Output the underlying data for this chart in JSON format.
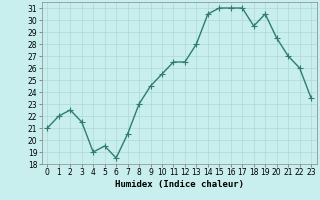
{
  "xlabel": "Humidex (Indice chaleur)",
  "x": [
    0,
    1,
    2,
    3,
    4,
    5,
    6,
    7,
    8,
    9,
    10,
    11,
    12,
    13,
    14,
    15,
    16,
    17,
    18,
    19,
    20,
    21,
    22,
    23
  ],
  "y": [
    21,
    22,
    22.5,
    21.5,
    19,
    19.5,
    18.5,
    20.5,
    23,
    24.5,
    25.5,
    26.5,
    26.5,
    28,
    30.5,
    31,
    31,
    31,
    29.5,
    30.5,
    28.5,
    27,
    26,
    23.5
  ],
  "line_color": "#2e7d6e",
  "marker": "+",
  "bg_color": "#c8eeee",
  "grid_color": "#b0d8d8",
  "ylim": [
    18,
    31.5
  ],
  "yticks": [
    18,
    19,
    20,
    21,
    22,
    23,
    24,
    25,
    26,
    27,
    28,
    29,
    30,
    31
  ],
  "xlim": [
    -0.5,
    23.5
  ],
  "xticks": [
    0,
    1,
    2,
    3,
    4,
    5,
    6,
    7,
    8,
    9,
    10,
    11,
    12,
    13,
    14,
    15,
    16,
    17,
    18,
    19,
    20,
    21,
    22,
    23
  ],
  "tick_fontsize": 5.5,
  "xlabel_fontsize": 6.5,
  "linewidth": 1.0,
  "markersize": 4,
  "markeredgewidth": 0.8
}
